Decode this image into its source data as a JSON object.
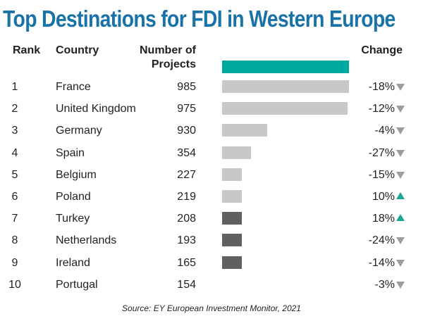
{
  "chart_data": {
    "type": "table",
    "title": "Top Destinations for FDI in Western Europe",
    "columns": {
      "rank": "Rank",
      "country": "Country",
      "projects": "Number of\nProjects",
      "change": "Change"
    },
    "rows": [
      {
        "rank": "1",
        "country": "France",
        "projects": 985,
        "change": "-18%",
        "direction": "down",
        "bar_color": "#c8c8c8"
      },
      {
        "rank": "2",
        "country": "United Kingdom",
        "projects": 975,
        "change": "-12%",
        "direction": "down",
        "bar_color": "#c8c8c8"
      },
      {
        "rank": "3",
        "country": "Germany",
        "projects": 930,
        "change": "-4%",
        "direction": "down",
        "bar_color": "#c8c8c8"
      },
      {
        "rank": "4",
        "country": "Spain",
        "projects": 354,
        "change": "-27%",
        "direction": "down",
        "bar_color": "#c8c8c8"
      },
      {
        "rank": "5",
        "country": "Belgium",
        "projects": 227,
        "change": "-15%",
        "direction": "down",
        "bar_color": "#c8c8c8"
      },
      {
        "rank": "6",
        "country": "Poland",
        "projects": 219,
        "change": "10%",
        "direction": "up",
        "bar_color": "#c8c8c8"
      },
      {
        "rank": "7",
        "country": "Turkey",
        "projects": 208,
        "change": "18%",
        "direction": "up",
        "bar_color": "#5f6062"
      },
      {
        "rank": "8",
        "country": "Netherlands",
        "projects": 193,
        "change": "-24%",
        "direction": "down",
        "bar_color": "#5f6062"
      },
      {
        "rank": "9",
        "country": "Ireland",
        "projects": 165,
        "change": "-14%",
        "direction": "down",
        "bar_color": "#5f6062"
      },
      {
        "rank": "10",
        "country": "Portugal",
        "projects": 154,
        "change": "-3%",
        "direction": "down",
        "bar_color": "#5f6062"
      }
    ],
    "header_bar": {
      "value": 985,
      "color": "#00a99d"
    },
    "source": "Source: EY European Investment Monitor, 2021"
  },
  "colors": {
    "title": "#1a73a8",
    "up": "#1fa796",
    "down": "#9d9d9d"
  }
}
